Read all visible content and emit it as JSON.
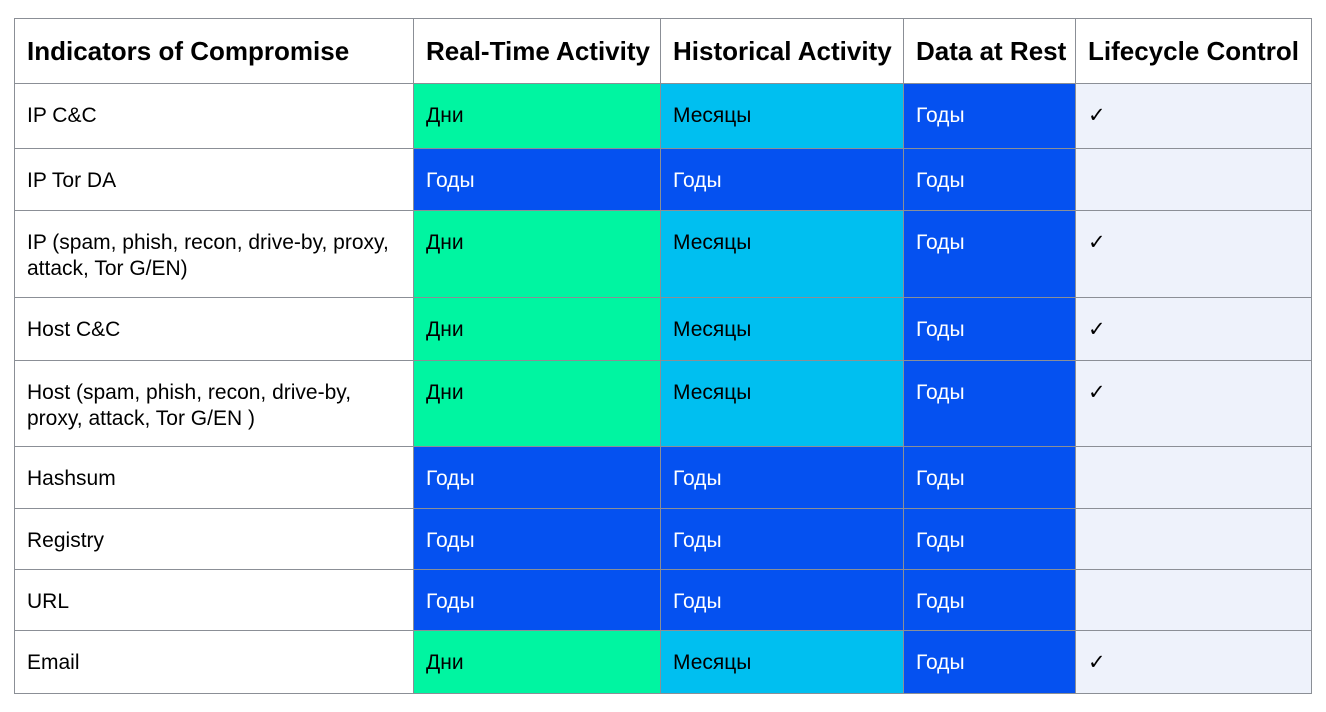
{
  "colors": {
    "days": "#00F5A1",
    "months": "#00BFF0",
    "years": "#0551F0",
    "lifecycle-bg": "#EEF2FB",
    "border": "#8B8F96",
    "header-bg": "#FFFFFF",
    "text-on-years": "#FFFFFF"
  },
  "table": {
    "columns": [
      {
        "label": "Indicators of Compromise"
      },
      {
        "label": "Real-Time Activity"
      },
      {
        "label": "Historical Activity"
      },
      {
        "label": "Data at Rest"
      },
      {
        "label": "Lifecycle Control"
      }
    ],
    "rows": [
      {
        "cells": [
          {
            "text": "IP C&C",
            "tone": "label"
          },
          {
            "text": "Дни",
            "tone": "days"
          },
          {
            "text": "Месяцы",
            "tone": "months"
          },
          {
            "text": "Годы",
            "tone": "years"
          },
          {
            "text": "✓",
            "tone": "lifecycle"
          }
        ]
      },
      {
        "cells": [
          {
            "text": "IP Tor DA",
            "tone": "label"
          },
          {
            "text": "Годы",
            "tone": "years"
          },
          {
            "text": "Годы",
            "tone": "years"
          },
          {
            "text": "Годы",
            "tone": "years"
          },
          {
            "text": "",
            "tone": "lifecycle"
          }
        ]
      },
      {
        "cells": [
          {
            "text": "IP (spam, phish, recon, drive-by, proxy, attack, Tor G/EN)",
            "tone": "label"
          },
          {
            "text": "Дни",
            "tone": "days"
          },
          {
            "text": "Месяцы",
            "tone": "months"
          },
          {
            "text": "Годы",
            "tone": "years"
          },
          {
            "text": "✓",
            "tone": "lifecycle"
          }
        ]
      },
      {
        "cells": [
          {
            "text": "Host C&C",
            "tone": "label"
          },
          {
            "text": "Дни",
            "tone": "days"
          },
          {
            "text": "Месяцы",
            "tone": "months"
          },
          {
            "text": "Годы",
            "tone": "years"
          },
          {
            "text": "✓",
            "tone": "lifecycle"
          }
        ]
      },
      {
        "cells": [
          {
            "text": "Host (spam, phish, recon, drive-by, proxy, attack, Tor G/EN )",
            "tone": "label"
          },
          {
            "text": "Дни",
            "tone": "days"
          },
          {
            "text": "Месяцы",
            "tone": "months"
          },
          {
            "text": "Годы",
            "tone": "years"
          },
          {
            "text": "✓",
            "tone": "lifecycle"
          }
        ]
      },
      {
        "cells": [
          {
            "text": "Hashsum",
            "tone": "label"
          },
          {
            "text": "Годы",
            "tone": "years"
          },
          {
            "text": "Годы",
            "tone": "years"
          },
          {
            "text": "Годы",
            "tone": "years"
          },
          {
            "text": "",
            "tone": "lifecycle"
          }
        ]
      },
      {
        "cells": [
          {
            "text": "Registry",
            "tone": "label"
          },
          {
            "text": "Годы",
            "tone": "years"
          },
          {
            "text": "Годы",
            "tone": "years"
          },
          {
            "text": "Годы",
            "tone": "years"
          },
          {
            "text": "",
            "tone": "lifecycle"
          }
        ]
      },
      {
        "cells": [
          {
            "text": "URL",
            "tone": "label"
          },
          {
            "text": "Годы",
            "tone": "years"
          },
          {
            "text": "Годы",
            "tone": "years"
          },
          {
            "text": "Годы",
            "tone": "years"
          },
          {
            "text": "",
            "tone": "lifecycle"
          }
        ]
      },
      {
        "cells": [
          {
            "text": "Email",
            "tone": "label"
          },
          {
            "text": "Дни",
            "tone": "days"
          },
          {
            "text": "Месяцы",
            "tone": "months"
          },
          {
            "text": "Годы",
            "tone": "years"
          },
          {
            "text": "✓",
            "tone": "lifecycle"
          }
        ]
      }
    ]
  }
}
